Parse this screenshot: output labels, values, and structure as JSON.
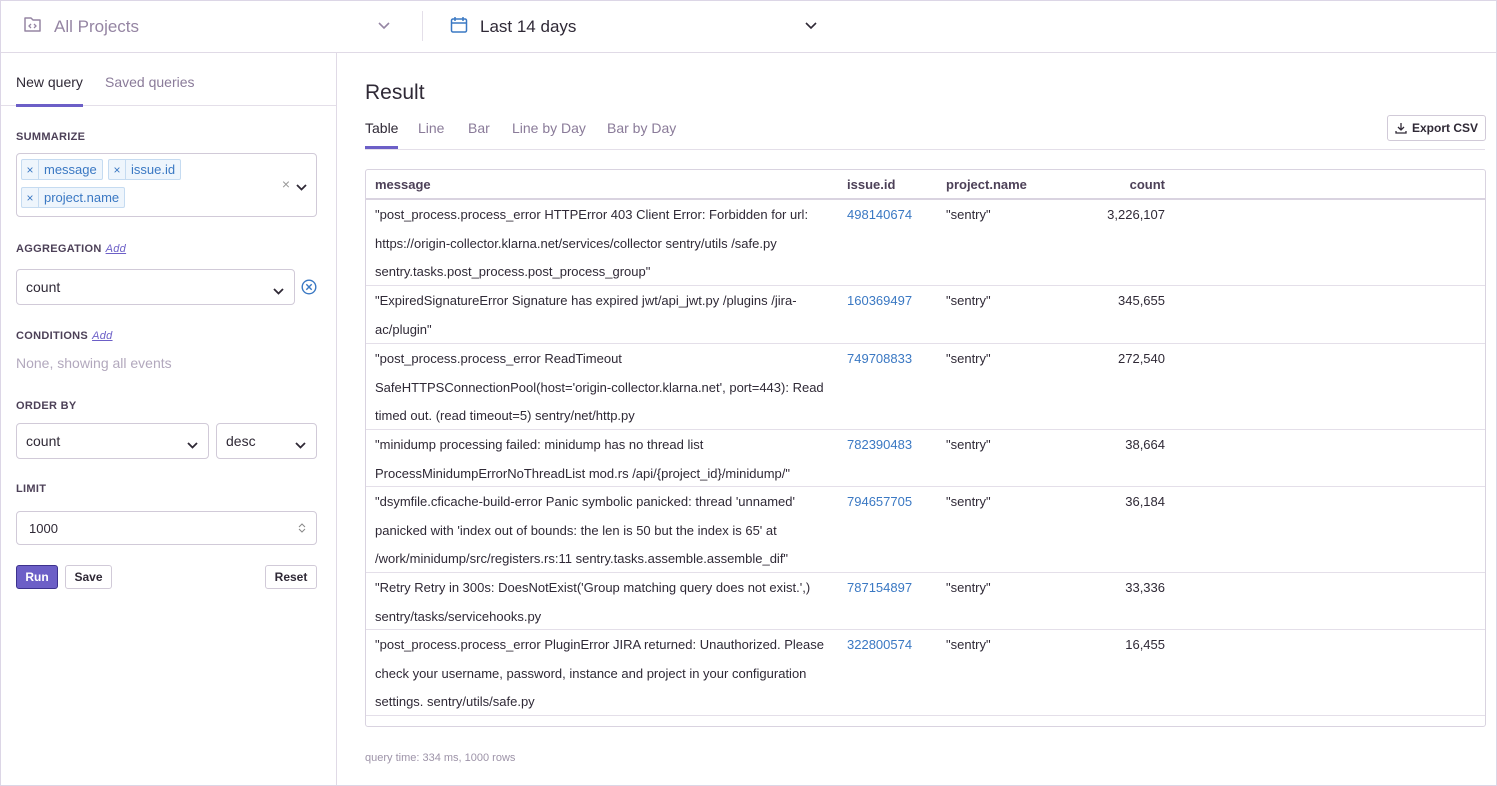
{
  "header": {
    "project_selector": "All Projects",
    "date_range": "Last 14 days"
  },
  "sidebar": {
    "tabs": [
      "New query",
      "Saved queries"
    ],
    "summarize": {
      "label": "SUMMARIZE",
      "tags": [
        "message",
        "issue.id",
        "project.name"
      ]
    },
    "aggregation": {
      "label": "AGGREGATION",
      "add": "Add",
      "value": "count"
    },
    "conditions": {
      "label": "CONDITIONS",
      "add": "Add",
      "empty_text": "None, showing all events"
    },
    "order_by": {
      "label": "ORDER BY",
      "field": "count",
      "direction": "desc"
    },
    "limit": {
      "label": "LIMIT",
      "value": "1000"
    },
    "buttons": {
      "run": "Run",
      "save": "Save",
      "reset": "Reset"
    }
  },
  "main": {
    "title": "Result",
    "view_tabs": [
      "Table",
      "Line",
      "Bar",
      "Line by Day",
      "Bar by Day"
    ],
    "export_label": "Export CSV",
    "columns": [
      "message",
      "issue.id",
      "project.name",
      "count"
    ],
    "rows": [
      {
        "message": "\"post_process.process_error HTTPError 403 Client Error: Forbidden for url: https://origin-collector.klarna.net/services/collector sentry/utils /safe.py sentry.tasks.post_process.post_process_group\"",
        "issue_id": "498140674",
        "project": "\"sentry\"",
        "count": "3,226,107"
      },
      {
        "message": "\"ExpiredSignatureError Signature has expired jwt/api_jwt.py /plugins /jira-ac/plugin\"",
        "issue_id": "160369497",
        "project": "\"sentry\"",
        "count": "345,655"
      },
      {
        "message": "\"post_process.process_error ReadTimeout SafeHTTPSConnectionPool(host='origin-collector.klarna.net', port=443): Read timed out. (read timeout=5) sentry/net/http.py",
        "issue_id": "749708833",
        "project": "\"sentry\"",
        "count": "272,540"
      },
      {
        "message": "\"minidump processing failed: minidump has no thread list ProcessMinidumpErrorNoThreadList mod.rs /api/{project_id}/minidump/\"",
        "issue_id": "782390483",
        "project": "\"sentry\"",
        "count": "38,664"
      },
      {
        "message": "\"dsymfile.cficache-build-error Panic symbolic panicked: thread 'unnamed' panicked with 'index out of bounds: the len is 50 but the index is 65' at /work/minidump/src/registers.rs:11 sentry.tasks.assemble.assemble_dif\"",
        "issue_id": "794657705",
        "project": "\"sentry\"",
        "count": "36,184"
      },
      {
        "message": "\"Retry Retry in 300s: DoesNotExist('Group matching query does not exist.',) sentry/tasks/servicehooks.py",
        "issue_id": "787154897",
        "project": "\"sentry\"",
        "count": "33,336"
      },
      {
        "message": "\"post_process.process_error PluginError JIRA returned: Unauthorized. Please check your username, password, instance and project in your configuration settings. sentry/utils/safe.py",
        "issue_id": "322800574",
        "project": "\"sentry\"",
        "count": "16,455"
      }
    ],
    "footer": "query time: 334 ms, 1000 rows"
  },
  "colors": {
    "accent": "#6c5fc7",
    "link": "#3a78c3",
    "border": "#d1cad8"
  }
}
